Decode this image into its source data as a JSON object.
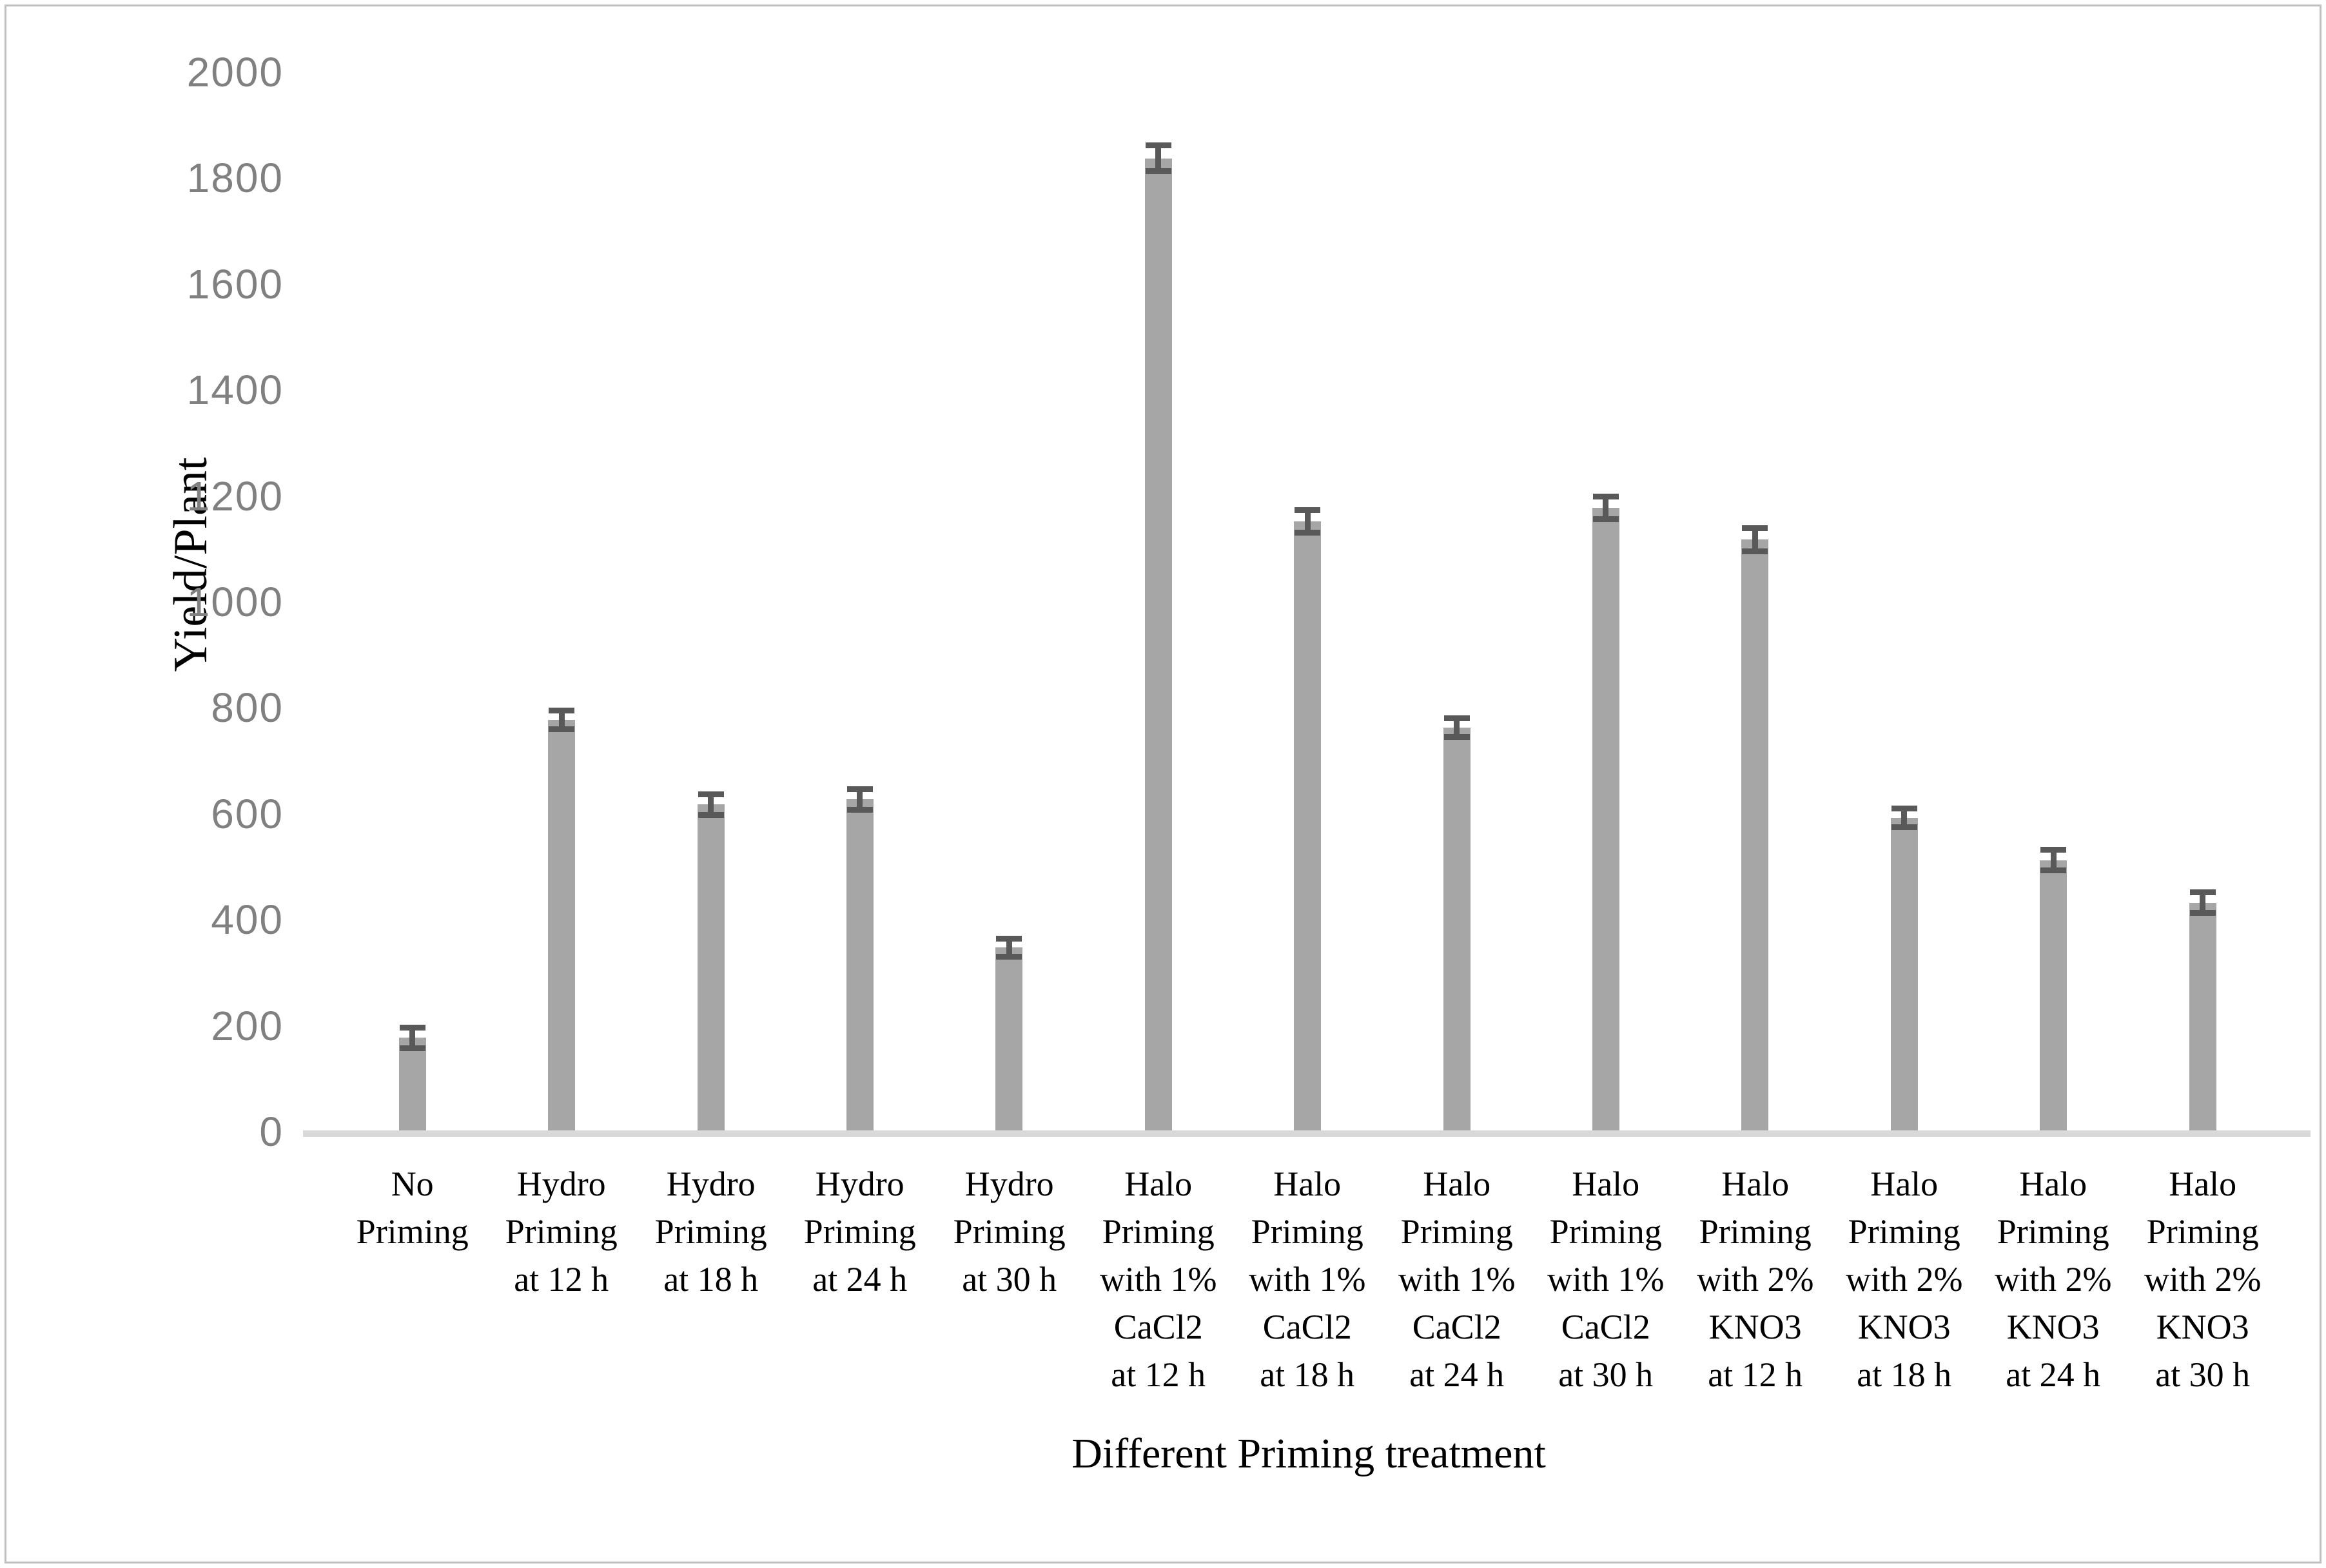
{
  "figure": {
    "background": "#ffffff",
    "border_color": "#bfbfbf"
  },
  "chart_data": {
    "type": "bar",
    "title": "",
    "xlabel": "Different Priming treatment",
    "ylabel": "Yield/Plant",
    "ylim": [
      0,
      2000
    ],
    "ytick_step": 200,
    "yticks": [
      0,
      200,
      400,
      600,
      800,
      1000,
      1200,
      1400,
      1600,
      1800,
      2000
    ],
    "grid": false,
    "legend": null,
    "bar_color": "#a6a6a6",
    "error_bar_color": "#595959",
    "axis_line_color": "#d9d9d9",
    "ytick_label_color": "#808080",
    "xtick_label_color": "#000000",
    "error_bars": "plus-minus, capped",
    "categories": [
      "No Priming",
      "Hydro Priming at 12 h",
      "Hydro Priming at 18 h",
      "Hydro Priming at 24 h",
      "Hydro Priming at 30 h",
      "Halo Priming with 1% CaCl2 at 12 h",
      "Halo Priming with 1% CaCl2 at 18 h",
      "Halo Priming with 1% CaCl2 at 24 h",
      "Halo Priming with 1% CaCl2 at 30 h",
      "Halo Priming with 2% KNO3 at 12 h",
      "Halo Priming with 2% KNO3 at 18 h",
      "Halo Priming with 2% KNO3 at 24 h",
      "Halo Priming with 2% KNO3 at 30 h"
    ],
    "category_lines": [
      [
        "No",
        "Priming"
      ],
      [
        "Hydro",
        "Priming",
        "at 12 h"
      ],
      [
        "Hydro",
        "Priming",
        "at 18 h"
      ],
      [
        "Hydro",
        "Priming",
        "at 24 h"
      ],
      [
        "Hydro",
        "Priming",
        "at 30 h"
      ],
      [
        "Halo",
        "Priming",
        "with 1%",
        "CaCl2",
        "at 12 h"
      ],
      [
        "Halo",
        "Priming",
        "with 1%",
        "CaCl2",
        "at 18 h"
      ],
      [
        "Halo",
        "Priming",
        "with 1%",
        "CaCl2",
        "at 24 h"
      ],
      [
        "Halo",
        "Priming",
        "with 1%",
        "CaCl2",
        "at 30 h"
      ],
      [
        "Halo",
        "Priming",
        "with 2%",
        "KNO3",
        "at 12 h"
      ],
      [
        "Halo",
        "Priming",
        "with 2%",
        "KNO3",
        "at 18 h"
      ],
      [
        "Halo",
        "Priming",
        "with 2%",
        "KNO3",
        "at 24 h"
      ],
      [
        "Halo",
        "Priming",
        "with 2%",
        "KNO3",
        "at 30 h"
      ]
    ],
    "values": [
      175,
      775,
      615,
      625,
      345,
      1835,
      1150,
      760,
      1175,
      1115,
      590,
      510,
      430
    ],
    "errors": [
      20,
      18,
      20,
      20,
      18,
      25,
      22,
      18,
      22,
      22,
      18,
      20,
      20
    ]
  }
}
